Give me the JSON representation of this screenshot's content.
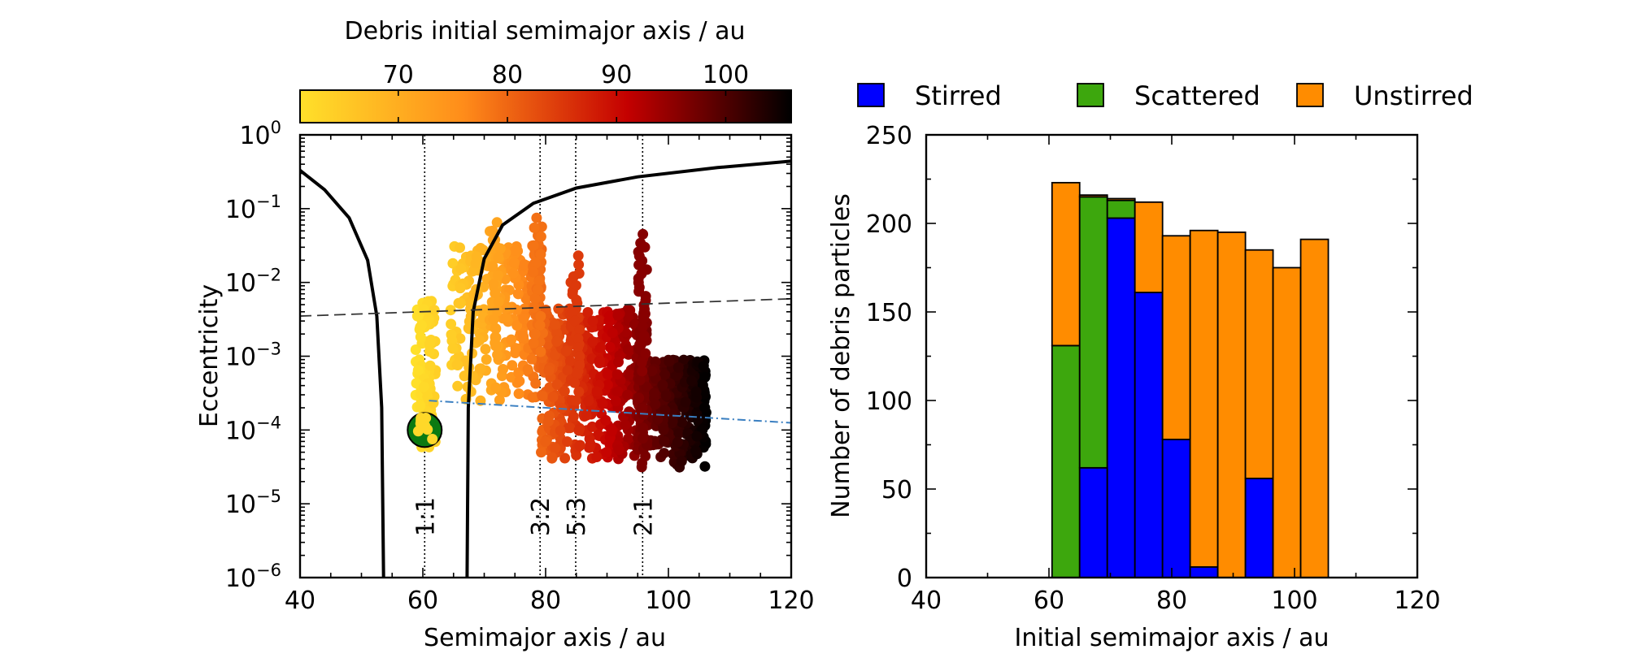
{
  "chart_data": [
    {
      "type": "scatter",
      "xlabel": "Semimajor axis / au",
      "ylabel": "Eccentricity",
      "xlim": [
        40,
        120
      ],
      "ylim": [
        1e-06,
        1
      ],
      "yscale": "log",
      "x_ticks": [
        "40",
        "60",
        "80",
        "100",
        "120"
      ],
      "y_ticks": [
        {
          "base": "10",
          "exp": "0"
        },
        {
          "base": "10",
          "exp": "−1"
        },
        {
          "base": "10",
          "exp": "−2"
        },
        {
          "base": "10",
          "exp": "−3"
        },
        {
          "base": "10",
          "exp": "−4"
        },
        {
          "base": "10",
          "exp": "−5"
        },
        {
          "base": "10",
          "exp": "−6"
        }
      ],
      "colorbar": {
        "label": "Debris initial semimajor axis / au",
        "range": [
          61,
          106
        ],
        "ticks": [
          "70",
          "80",
          "90",
          "100"
        ],
        "colors": [
          "#ffe02a",
          "#ff8c1a",
          "#c40000",
          "#000000"
        ]
      },
      "resonances": [
        {
          "label": "1:1",
          "a": 60.3
        },
        {
          "label": "3:2",
          "a": 79.1
        },
        {
          "label": "5:3",
          "a": 84.9
        },
        {
          "label": "2:1",
          "a": 95.8
        }
      ],
      "planet": {
        "a": 60.3,
        "e": 0.0001,
        "color": "#0b7a12"
      },
      "crossing_curves": [
        {
          "points": [
            [
              40,
              0.33
            ],
            [
              44,
              0.18
            ],
            [
              48,
              0.075
            ],
            [
              51,
              0.02
            ],
            [
              52.5,
              0.0035
            ],
            [
              53.3,
              0.0002
            ],
            [
              53.6,
              1e-06
            ]
          ]
        },
        {
          "points": [
            [
              67.2,
              1e-06
            ],
            [
              67.4,
              0.0002
            ],
            [
              68.2,
              0.004
            ],
            [
              70,
              0.021
            ],
            [
              73,
              0.06
            ],
            [
              78,
              0.118
            ],
            [
              85,
              0.19
            ],
            [
              95,
              0.27
            ],
            [
              108,
              0.36
            ],
            [
              120,
              0.44
            ]
          ]
        }
      ],
      "dashed_line": {
        "points": [
          [
            40,
            0.0035
          ],
          [
            120,
            0.006
          ]
        ],
        "color": "#333333"
      },
      "dashdot_line": {
        "points": [
          [
            61,
            0.00025
          ],
          [
            120,
            0.000125
          ]
        ],
        "color": "#3a7fc1"
      },
      "clusters": [
        {
          "a_min": 58.8,
          "a_max": 62.1,
          "c_min": 61,
          "c_max": 64,
          "log_lo": -4.25,
          "log_hi": -2.25,
          "n": 110,
          "bias": 0.9
        },
        {
          "a_min": 64.5,
          "a_max": 79.5,
          "c_min": 64,
          "c_max": 80,
          "log_lo": -3.65,
          "log_hi": -1.5,
          "n": 260,
          "bias": 0.7
        },
        {
          "a_min": 79.2,
          "a_max": 96.5,
          "c_min": 80,
          "c_max": 97,
          "log_lo": -4.4,
          "log_hi": -2.35,
          "n": 520,
          "bias": 0.75
        },
        {
          "a_min": 95,
          "a_max": 106.2,
          "c_min": 96,
          "c_max": 106,
          "log_lo": -4.55,
          "log_hi": -3.05,
          "n": 430,
          "bias": 0.6
        }
      ],
      "spikes": [
        {
          "a": 71.5,
          "e": 0.065
        },
        {
          "a": 72.0,
          "e": 0.05
        },
        {
          "a": 79.0,
          "e": 0.075
        },
        {
          "a": 78.6,
          "e": 0.055
        },
        {
          "a": 84.8,
          "e": 0.023
        },
        {
          "a": 84.9,
          "e": 0.012
        },
        {
          "a": 95.8,
          "e": 0.045
        },
        {
          "a": 95.6,
          "e": 0.03
        }
      ]
    },
    {
      "type": "bar",
      "stacked": true,
      "xlabel": "Initial semimajor axis / au",
      "ylabel": "Number of debris particles",
      "xlim": [
        40,
        120
      ],
      "ylim": [
        0,
        250
      ],
      "x_ticks": [
        "40",
        "60",
        "80",
        "100",
        "120"
      ],
      "y_ticks": [
        "0",
        "50",
        "100",
        "150",
        "200",
        "250"
      ],
      "legend": {
        "placement": "top",
        "items": [
          "Stirred",
          "Scattered",
          "Unstirred"
        ]
      },
      "bin_edges": [
        60.5,
        65,
        69.5,
        74,
        78.5,
        83,
        87.5,
        92,
        96.5,
        101,
        105.5
      ],
      "series": [
        {
          "name": "Stirred",
          "color": "#0000ff",
          "values": [
            0,
            62,
            203,
            161,
            78,
            6,
            0,
            56,
            0,
            0
          ]
        },
        {
          "name": "Scattered",
          "color": "#3da70d",
          "values": [
            131,
            153,
            10,
            0,
            0,
            0,
            0,
            0,
            0,
            0
          ]
        },
        {
          "name": "Unstirred",
          "color": "#ff8c00",
          "values": [
            92,
            1,
            1,
            51,
            115,
            190,
            195,
            129,
            175,
            191
          ]
        }
      ]
    }
  ]
}
